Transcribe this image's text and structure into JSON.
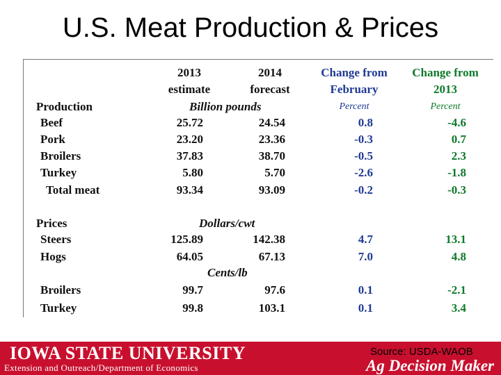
{
  "title": "U.S. Meat Production & Prices",
  "headers": {
    "c1_line1": "2013",
    "c1_line2": "estimate",
    "c2_line1": "2014",
    "c2_line2": "forecast",
    "c3_line1": "Change from",
    "c3_line2": "February",
    "c4_line1": "Change from",
    "c4_line2": "2013"
  },
  "production": {
    "label": "Production",
    "units": "Billion pounds",
    "pct3": "Percent",
    "pct4": "Percent",
    "rows": [
      {
        "name": "Beef",
        "v2013": "25.72",
        "v2014": "24.54",
        "chg_feb": "0.8",
        "chg_2013": "-4.6"
      },
      {
        "name": "Pork",
        "v2013": "23.20",
        "v2014": "23.36",
        "chg_feb": "-0.3",
        "chg_2013": "0.7"
      },
      {
        "name": "Broilers",
        "v2013": "37.83",
        "v2014": "38.70",
        "chg_feb": "-0.5",
        "chg_2013": "2.3"
      },
      {
        "name": "Turkey",
        "v2013": "5.80",
        "v2014": "5.70",
        "chg_feb": "-2.6",
        "chg_2013": "-1.8"
      },
      {
        "name": "Total meat",
        "v2013": "93.34",
        "v2014": "93.09",
        "chg_feb": "-0.2",
        "chg_2013": "-0.3"
      }
    ]
  },
  "prices": {
    "label": "Prices",
    "units_cwt": "Dollars/cwt",
    "units_lb": "Cents/lb",
    "rows": [
      {
        "name": "Steers",
        "v2013": "125.89",
        "v2014": "142.38",
        "chg_feb": "4.7",
        "chg_2013": "13.1"
      },
      {
        "name": "Hogs",
        "v2013": "64.05",
        "v2014": "67.13",
        "chg_feb": "7.0",
        "chg_2013": "4.8"
      },
      {
        "name": "Broilers",
        "v2013": "99.7",
        "v2014": "97.6",
        "chg_feb": "0.1",
        "chg_2013": "-2.1"
      },
      {
        "name": "Turkey",
        "v2013": "99.8",
        "v2014": "103.1",
        "chg_feb": "0.1",
        "chg_2013": "3.4"
      }
    ]
  },
  "footer": {
    "university": "IOWA STATE UNIVERSITY",
    "department": "Extension and Outreach/Department of Economics",
    "source": "Source: USDA-WAOB",
    "brand": "Ag Decision Maker"
  },
  "colors": {
    "footer_bg": "#c8102e",
    "change_feb": "#1f3a93",
    "change_2013": "#0d7a2a"
  }
}
